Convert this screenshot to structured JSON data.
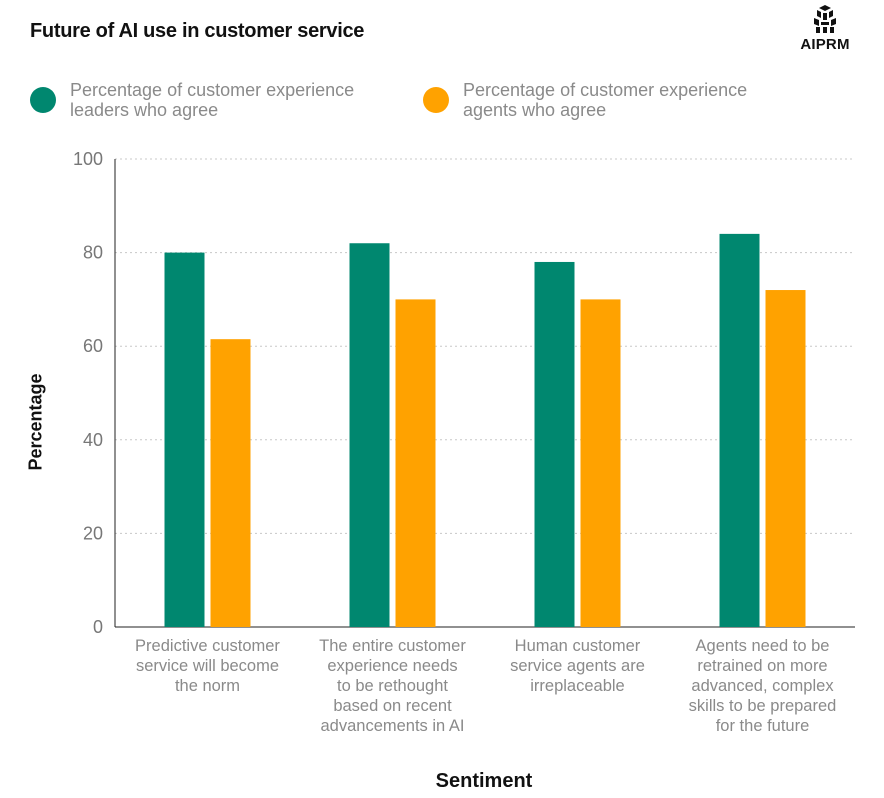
{
  "title": "Future of AI use in customer service",
  "logo": {
    "text": "AIPRM",
    "icon": "aiprm-logo-icon"
  },
  "chart_data": {
    "type": "bar",
    "title": "Future of AI use in customer service",
    "xlabel": "Sentiment",
    "ylabel": "Percentage",
    "ylim": [
      0,
      100
    ],
    "yticks": [
      0,
      20,
      40,
      60,
      80,
      100
    ],
    "grid": true,
    "legend_placement": "top-left",
    "categories": [
      [
        "Predictive customer",
        "service will become",
        "the norm"
      ],
      [
        "The entire customer",
        "experience needs",
        "to be rethought",
        "based on recent",
        "advancements in AI"
      ],
      [
        "Human customer",
        "service agents are",
        "irreplaceable"
      ],
      [
        "Agents need to be",
        "retrained on more",
        "advanced, complex",
        "skills to be prepared",
        "for the future"
      ]
    ],
    "series": [
      {
        "name": "Percentage of customer experience leaders who agree",
        "legend_lines": [
          "Percentage of customer experience",
          "leaders who agree"
        ],
        "color": "#00876f",
        "values": [
          80,
          82,
          78,
          84
        ]
      },
      {
        "name": "Percentage of customer experience agents who agree",
        "legend_lines": [
          "Percentage of customer experience",
          "agents who agree"
        ],
        "color": "#ffa200",
        "values": [
          61.5,
          70,
          70,
          72
        ]
      }
    ]
  }
}
